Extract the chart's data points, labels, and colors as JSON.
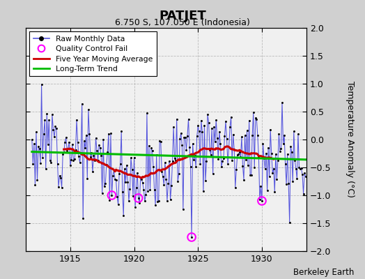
{
  "title": "PATJET",
  "subtitle": "6.750 S, 107.050 E (Indonesia)",
  "ylabel": "Temperature Anomaly (°C)",
  "credit": "Berkeley Earth",
  "ylim": [
    -2,
    2
  ],
  "xlim": [
    1911.5,
    1933.5
  ],
  "yticks": [
    -2,
    -1.5,
    -1,
    -0.5,
    0,
    0.5,
    1,
    1.5,
    2
  ],
  "xticks": [
    1915,
    1920,
    1925,
    1930
  ],
  "fig_bg_color": "#d0d0d0",
  "plot_bg_color": "#f0f0f0",
  "raw_line_color": "#5555dd",
  "raw_dot_color": "#000000",
  "ma_color": "#cc0000",
  "trend_color": "#00bb00",
  "qc_fail_color": "#ff00ff",
  "grid_color": "#bbbbbb",
  "seed": 12
}
